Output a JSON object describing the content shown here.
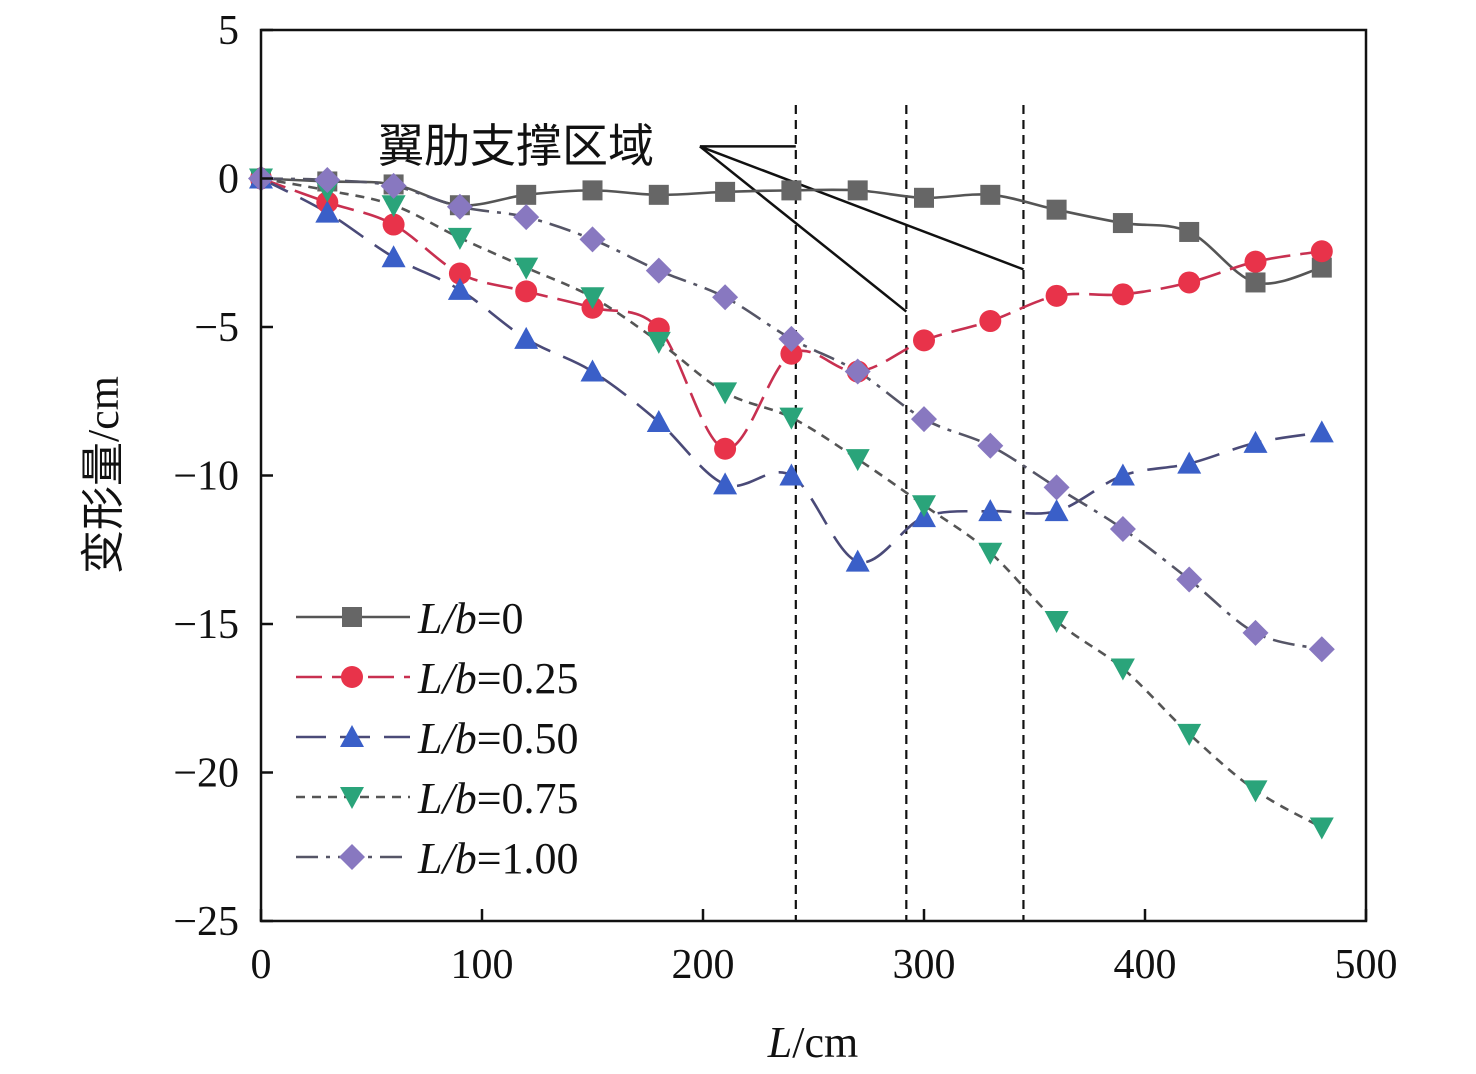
{
  "chart_data": {
    "type": "line",
    "xlabel": "L/cm",
    "xlabel_italic_part": "L",
    "xlabel_rest": "/cm",
    "ylabel": "变形量/cm",
    "xlim": [
      0,
      500
    ],
    "ylim": [
      -25,
      5
    ],
    "xticks": [
      0,
      100,
      200,
      300,
      400,
      500
    ],
    "yticks": [
      5,
      0,
      -5,
      -10,
      -15,
      -20,
      -25
    ],
    "ytick_labels": [
      "5",
      "0",
      "−5",
      "−10",
      "−15",
      "−20",
      "−25"
    ],
    "grid": false,
    "legend_placement": "bottom-left",
    "x": [
      0,
      30,
      60,
      90,
      120,
      150,
      180,
      210,
      240,
      270,
      300,
      330,
      360,
      390,
      420,
      450,
      480
    ],
    "series": [
      {
        "name": "L/b=0",
        "name_italic": "L/b",
        "name_value": "=0",
        "marker": "square",
        "color": "#666666",
        "line_color": "#555555",
        "dash": "solid",
        "values": [
          0,
          -0.1,
          -0.2,
          -0.9,
          -0.55,
          -0.4,
          -0.55,
          -0.45,
          -0.4,
          -0.4,
          -0.65,
          -0.55,
          -1.05,
          -1.5,
          -1.8,
          -3.5,
          -3.0
        ]
      },
      {
        "name": "L/b=0.25",
        "name_italic": "L/b",
        "name_value": "=0.25",
        "marker": "circle",
        "color": "#e8334a",
        "line_color": "#c83050",
        "dash": "long-dash",
        "values": [
          0,
          -0.8,
          -1.55,
          -3.2,
          -3.8,
          -4.35,
          -5.05,
          -9.1,
          -5.9,
          -6.5,
          -5.45,
          -4.8,
          -3.95,
          -3.9,
          -3.5,
          -2.8,
          -2.45
        ]
      },
      {
        "name": "L/b=0.50",
        "name_italic": "L/b",
        "name_value": "=0.50",
        "marker": "triangle-up",
        "color": "#3a5fc8",
        "line_color": "#4a4a78",
        "dash": "long-dash-gap",
        "values": [
          0,
          -1.15,
          -2.65,
          -3.75,
          -5.4,
          -6.5,
          -8.2,
          -10.3,
          -10.0,
          -12.9,
          -11.4,
          -11.2,
          -11.2,
          -10.0,
          -9.6,
          -8.9,
          -8.55
        ]
      },
      {
        "name": "L/b=0.75",
        "name_italic": "L/b",
        "name_value": "=0.75",
        "marker": "triangle-down",
        "color": "#2aa47a",
        "line_color": "#555555",
        "dash": "short-dash",
        "values": [
          0,
          -0.4,
          -0.9,
          -2.0,
          -3.0,
          -4.0,
          -5.5,
          -7.2,
          -8.05,
          -9.45,
          -11.0,
          -12.6,
          -14.9,
          -16.5,
          -18.7,
          -20.6,
          -21.85
        ]
      },
      {
        "name": "L/b=1.00",
        "name_italic": "L/b",
        "name_value": "=1.00",
        "marker": "diamond",
        "color": "#8878c0",
        "line_color": "#555566",
        "dash": "dash-dot",
        "values": [
          0,
          -0.05,
          -0.25,
          -0.95,
          -1.3,
          -2.05,
          -3.1,
          -4.0,
          -5.4,
          -6.5,
          -8.1,
          -9.0,
          -10.4,
          -11.8,
          -13.5,
          -15.3,
          -15.85
        ]
      }
    ],
    "vertical_reference_lines": [
      242,
      292,
      345
    ],
    "annotation": {
      "text": "翼肋支撑区域",
      "origin": [
        198.6,
        1.08
      ],
      "targets": [
        [
          242,
          1.08
        ],
        [
          292,
          -4.48
        ],
        [
          345,
          -3.06
        ]
      ]
    }
  }
}
